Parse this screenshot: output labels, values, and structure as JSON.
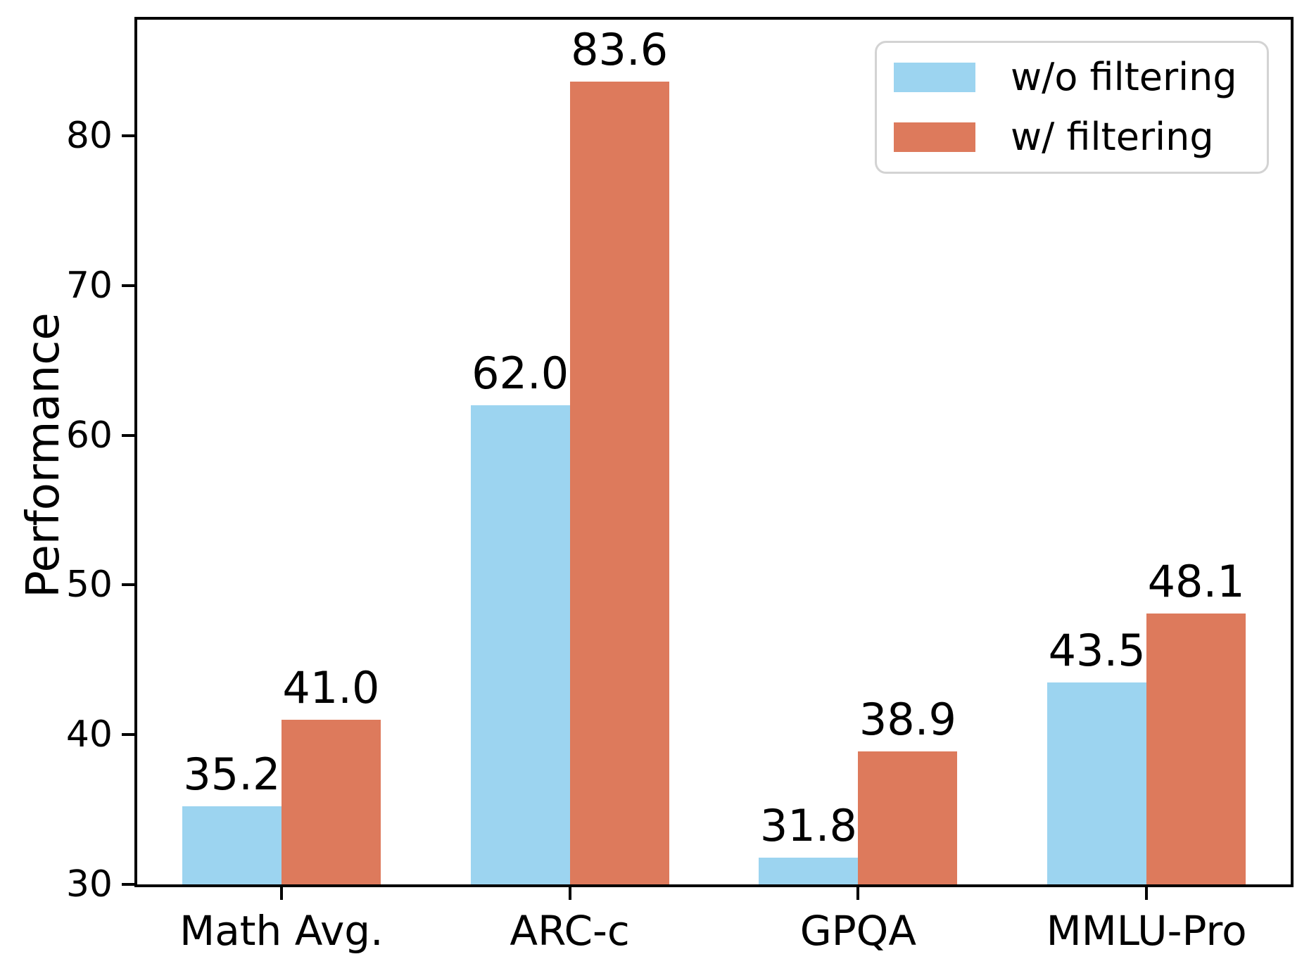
{
  "chart_data": {
    "type": "bar",
    "title": "",
    "xlabel": "",
    "ylabel": "Performance",
    "categories": [
      "Math Avg.",
      "ARC-c",
      "GPQA",
      "MMLU-Pro"
    ],
    "series": [
      {
        "name": "w/o filtering",
        "color": "#9CD4F0",
        "values": [
          35.2,
          62.0,
          31.8,
          43.5
        ]
      },
      {
        "name": "w/ filtering",
        "color": "#DD7A5C",
        "values": [
          41.0,
          83.6,
          38.9,
          48.1
        ]
      }
    ],
    "yticks": [
      30,
      40,
      50,
      60,
      70,
      80
    ],
    "ylim": [
      30,
      87.75
    ],
    "grid": false,
    "legend_position": "top-right",
    "value_labels": true,
    "value_label_decimals": 1
  },
  "colors": {
    "background": "#ffffff",
    "axis": "#000000",
    "text": "#000000",
    "legend_border": "#d3d3d3"
  }
}
